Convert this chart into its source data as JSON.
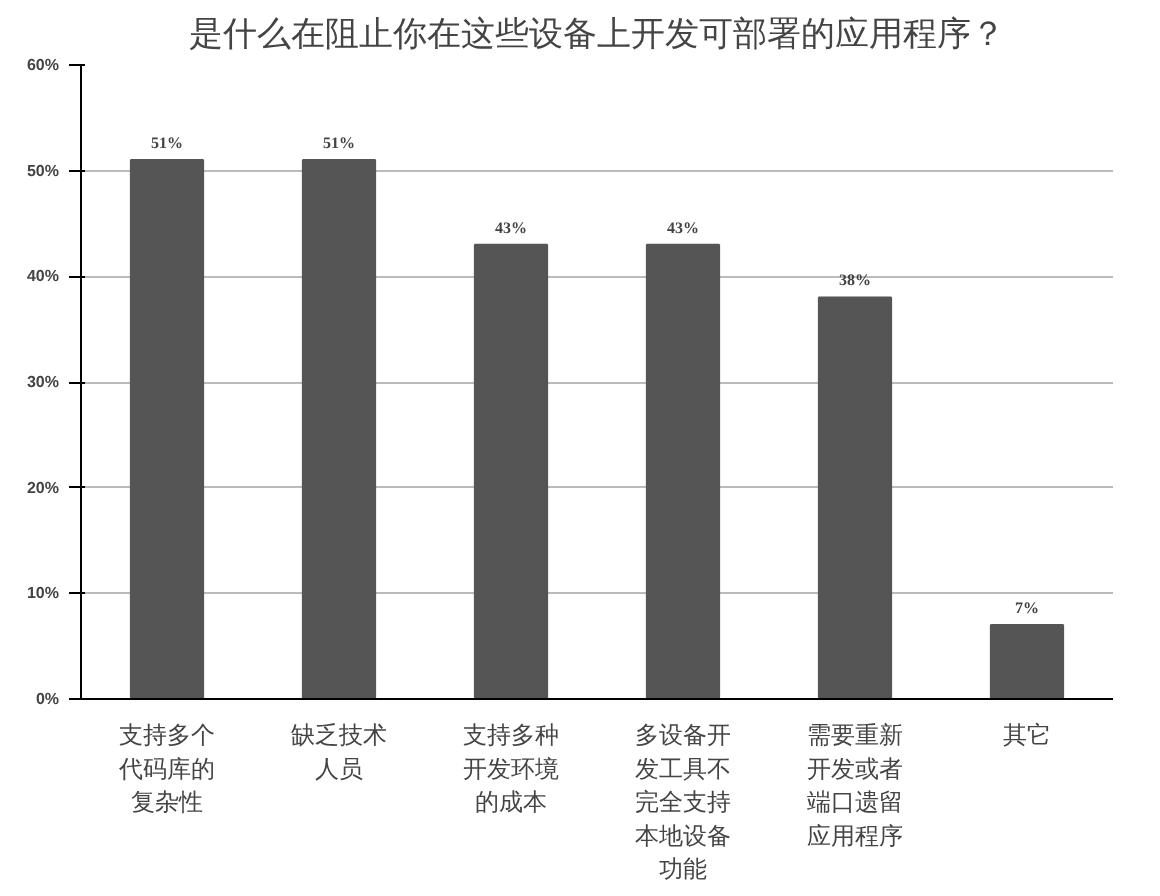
{
  "chart_data": {
    "type": "bar",
    "title": "是什么在阻止你在这些设备上开发可部署的应用程序？",
    "categories": [
      "支持多个代码库的复杂性",
      "缺乏技术人员",
      "支持多种开发环境的成本",
      "多设备开发工具不完全支持本地设备功能",
      "需要重新开发或者端口遗留应用程序",
      "其它"
    ],
    "values": [
      51,
      51,
      43,
      43,
      38,
      7
    ],
    "color": "#555555",
    "value_labels": [
      "51%",
      "51%",
      "43%",
      "43%",
      "38%",
      "7%"
    ],
    "ylim": [
      0,
      60
    ],
    "yticks": [
      {
        "value": 0,
        "label": "0%"
      },
      {
        "value": 10,
        "label": "10%"
      },
      {
        "value": 20,
        "label": "20%"
      },
      {
        "value": 30,
        "label": "30%"
      },
      {
        "value": 40,
        "label": "40%"
      },
      {
        "value": 50,
        "label": "50%"
      },
      {
        "value": 60,
        "label": "60%"
      }
    ],
    "grid": "y"
  }
}
